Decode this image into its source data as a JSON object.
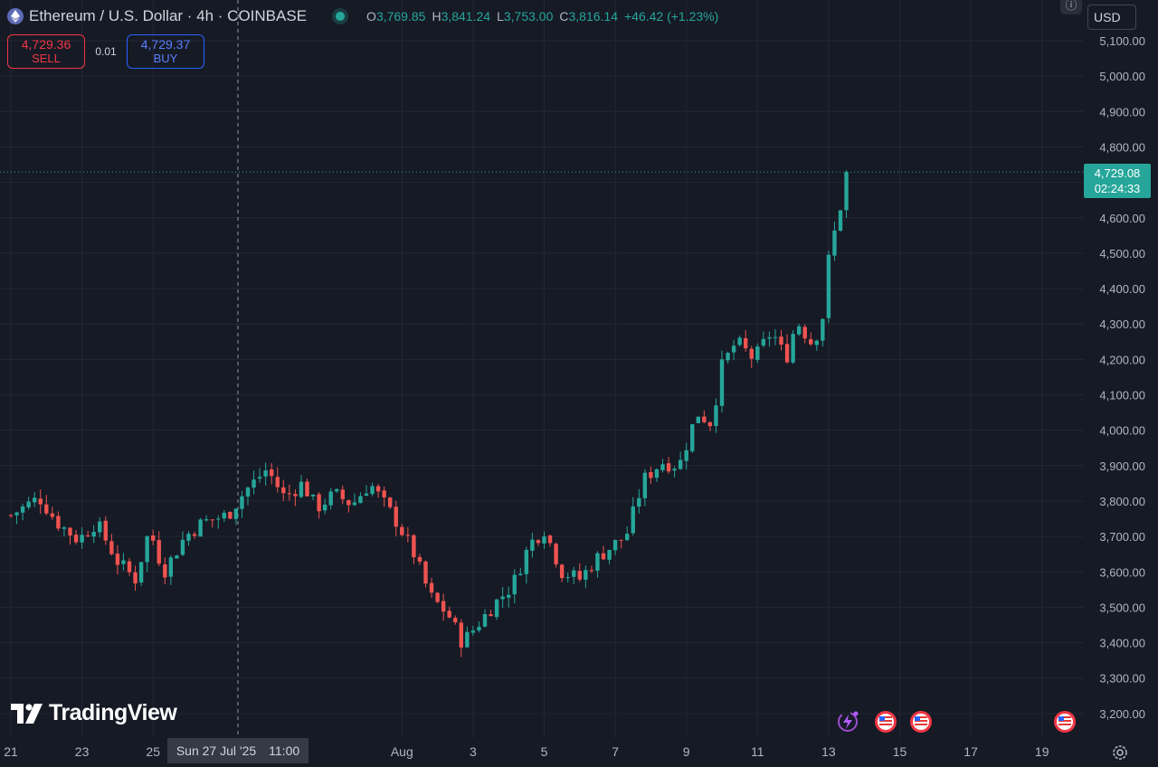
{
  "header": {
    "symbol_title": "Ethereum / U.S. Dollar · 4h · COINBASE",
    "ohlc": {
      "o_label": "O",
      "o": "3,769.85",
      "h_label": "H",
      "h": "3,841.24",
      "l_label": "L",
      "l": "3,753.00",
      "c_label": "C",
      "c": "3,816.14",
      "change": "+46.42 (+1.23%)"
    }
  },
  "trade": {
    "sell_price": "4,729.36",
    "sell_label": "SELL",
    "spread": "0.01",
    "buy_price": "4,729.37",
    "buy_label": "BUY"
  },
  "currency": "USD",
  "last_price": {
    "value": "4,729.08",
    "countdown": "02:24:33"
  },
  "crosshair": {
    "date_label": "Sun 27 Jul '25",
    "time_label": "11:00"
  },
  "brand": "TradingView",
  "colors": {
    "up": "#26a69a",
    "down": "#ef5350",
    "background": "#161a25",
    "grid": "#232733"
  },
  "icons": [
    "ethereum-icon",
    "info-icon",
    "flash-event-icon",
    "us-flag-event-icon",
    "settings-icon"
  ],
  "chart_data": {
    "type": "candlestick",
    "interval": "4h",
    "ylim": [
      3150,
      5150
    ],
    "y_ticks": [
      "5,100.00",
      "5,000.00",
      "4,900.00",
      "4,800.00",
      "4,700.00",
      "4,600.00",
      "4,500.00",
      "4,400.00",
      "4,300.00",
      "4,200.00",
      "4,100.00",
      "4,000.00",
      "3,900.00",
      "3,800.00",
      "3,700.00",
      "3,600.00",
      "3,500.00",
      "3,400.00",
      "3,300.00",
      "3,200.00"
    ],
    "y_tick_values": [
      5100,
      5000,
      4900,
      4800,
      4700,
      4600,
      4500,
      4400,
      4300,
      4200,
      4100,
      4000,
      3900,
      3800,
      3700,
      3600,
      3500,
      3400,
      3300,
      3200
    ],
    "x_ticks": [
      {
        "label": "21",
        "day": 0
      },
      {
        "label": "23",
        "day": 2
      },
      {
        "label": "25",
        "day": 4
      },
      {
        "label": "Aug",
        "day": 11
      },
      {
        "label": "3",
        "day": 13
      },
      {
        "label": "5",
        "day": 15
      },
      {
        "label": "7",
        "day": 17
      },
      {
        "label": "9",
        "day": 19
      },
      {
        "label": "11",
        "day": 21
      },
      {
        "label": "13",
        "day": 23
      },
      {
        "label": "15",
        "day": 25
      },
      {
        "label": "17",
        "day": 27
      },
      {
        "label": "19",
        "day": 29
      }
    ],
    "key_points": [
      {
        "day": 0.0,
        "price": 3760
      },
      {
        "day": 0.8,
        "price": 3810
      },
      {
        "day": 1.3,
        "price": 3740
      },
      {
        "day": 1.9,
        "price": 3690
      },
      {
        "day": 2.4,
        "price": 3740
      },
      {
        "day": 3.0,
        "price": 3630
      },
      {
        "day": 3.5,
        "price": 3580
      },
      {
        "day": 3.9,
        "price": 3720
      },
      {
        "day": 4.3,
        "price": 3600
      },
      {
        "day": 4.9,
        "price": 3700
      },
      {
        "day": 5.4,
        "price": 3740
      },
      {
        "day": 6.1,
        "price": 3760
      },
      {
        "day": 6.6,
        "price": 3830
      },
      {
        "day": 7.2,
        "price": 3890
      },
      {
        "day": 7.7,
        "price": 3810
      },
      {
        "day": 8.2,
        "price": 3850
      },
      {
        "day": 8.6,
        "price": 3780
      },
      {
        "day": 9.1,
        "price": 3820
      },
      {
        "day": 9.6,
        "price": 3790
      },
      {
        "day": 10.1,
        "price": 3850
      },
      {
        "day": 10.8,
        "price": 3750
      },
      {
        "day": 11.3,
        "price": 3660
      },
      {
        "day": 11.8,
        "price": 3530
      },
      {
        "day": 12.3,
        "price": 3480
      },
      {
        "day": 12.7,
        "price": 3400
      },
      {
        "day": 13.2,
        "price": 3460
      },
      {
        "day": 13.6,
        "price": 3510
      },
      {
        "day": 14.1,
        "price": 3560
      },
      {
        "day": 14.6,
        "price": 3680
      },
      {
        "day": 15.0,
        "price": 3720
      },
      {
        "day": 15.5,
        "price": 3600
      },
      {
        "day": 16.0,
        "price": 3580
      },
      {
        "day": 16.5,
        "price": 3640
      },
      {
        "day": 17.0,
        "price": 3680
      },
      {
        "day": 17.3,
        "price": 3700
      },
      {
        "day": 17.8,
        "price": 3860
      },
      {
        "day": 18.3,
        "price": 3910
      },
      {
        "day": 18.8,
        "price": 3900
      },
      {
        "day": 19.3,
        "price": 4050
      },
      {
        "day": 19.7,
        "price": 4020
      },
      {
        "day": 20.0,
        "price": 4180
      },
      {
        "day": 20.4,
        "price": 4250
      },
      {
        "day": 20.9,
        "price": 4200
      },
      {
        "day": 21.4,
        "price": 4280
      },
      {
        "day": 21.8,
        "price": 4200
      },
      {
        "day": 22.1,
        "price": 4310
      },
      {
        "day": 22.5,
        "price": 4250
      },
      {
        "day": 22.8,
        "price": 4290
      },
      {
        "day": 23.0,
        "price": 4480
      },
      {
        "day": 23.3,
        "price": 4620
      },
      {
        "day": 23.6,
        "price": 4729
      }
    ]
  }
}
